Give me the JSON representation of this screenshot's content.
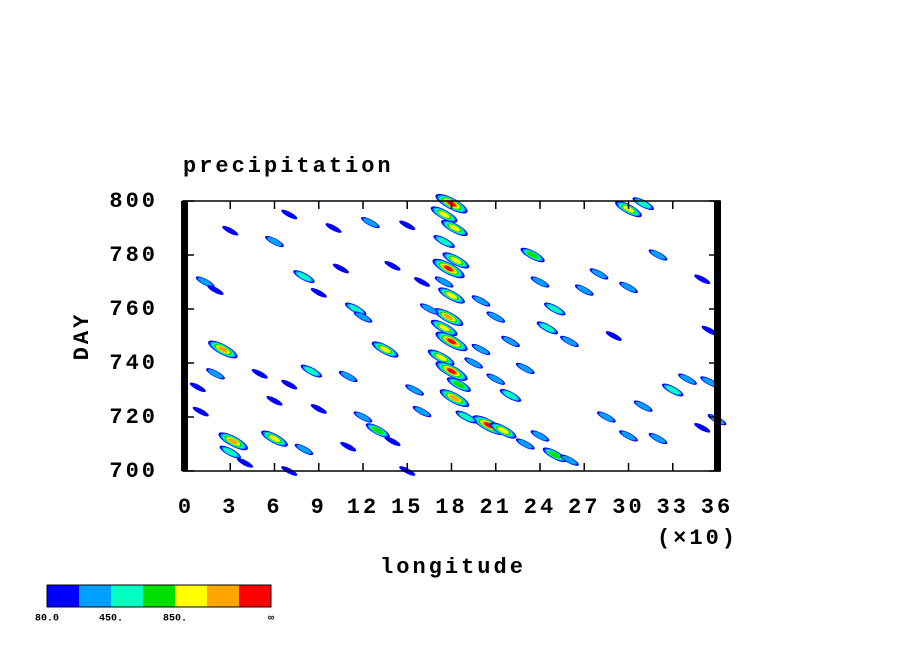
{
  "chart_data": {
    "type": "contour",
    "title": "precipitation",
    "x_label": "longitude",
    "x_multiplier": "(×10)",
    "y_label": "DAY",
    "xlim": [
      0,
      36
    ],
    "xticks": [
      0,
      3,
      6,
      9,
      12,
      15,
      18,
      21,
      24,
      27,
      30,
      33,
      36
    ],
    "ylim": [
      700,
      800
    ],
    "yticks": [
      700,
      720,
      740,
      760,
      780,
      800
    ],
    "colorbar": {
      "colors": [
        "#0000ff",
        "#00a0ff",
        "#00ffc0",
        "#00e000",
        "#ffff00",
        "#ffa500",
        "#ff0000"
      ],
      "ticks": [
        {
          "value": 80,
          "label": "80.0"
        },
        {
          "value": 450,
          "label": "450."
        },
        {
          "value": 850,
          "label": "850."
        }
      ],
      "end_label": "∞"
    },
    "x": [
      18,
      17.5,
      18.2,
      17.5,
      17.8,
      18.3,
      17.5,
      18,
      17.8,
      17.5,
      18,
      17.3,
      18,
      18.5,
      18.2,
      20.5,
      21.5,
      19,
      2.5,
      3.2,
      6,
      3,
      23.5,
      24,
      25,
      23,
      22,
      30,
      31,
      32,
      28,
      27,
      30,
      24.5,
      26,
      29,
      33,
      34,
      35.5,
      31,
      28.5,
      30,
      32,
      35,
      36,
      35,
      35.5,
      1,
      2,
      0.8,
      1.3,
      2,
      6,
      8,
      9,
      10.5,
      11.5,
      12,
      12.5,
      13.5,
      11,
      8.5,
      7,
      5,
      6,
      9,
      12,
      13,
      14,
      8,
      11,
      15,
      7,
      4,
      16.5,
      20,
      21,
      22,
      20,
      19.5,
      21,
      15.5,
      16,
      24,
      25,
      26,
      23,
      15,
      14,
      10,
      3,
      7,
      16
    ],
    "y": [
      799,
      795,
      790,
      785,
      775,
      778,
      770,
      765,
      757,
      753,
      748,
      742,
      737,
      732,
      727,
      717,
      715,
      720,
      745,
      711,
      712,
      707,
      780,
      770,
      760,
      738,
      728,
      797,
      799,
      780,
      773,
      767,
      768,
      753,
      748,
      750,
      730,
      734,
      733,
      724,
      720,
      713,
      712,
      716,
      719,
      771,
      752,
      722,
      736,
      731,
      770,
      767,
      785,
      772,
      766,
      775,
      760,
      757,
      792,
      745,
      735,
      737,
      732,
      736,
      726,
      723,
      720,
      715,
      711,
      708,
      709,
      700,
      700,
      703,
      760,
      763,
      757,
      748,
      745,
      740,
      734,
      730,
      722,
      713,
      706,
      704,
      710,
      791,
      776,
      790,
      789,
      795,
      770
    ],
    "values": [
      1300,
      900,
      1000,
      500,
      1300,
      1000,
      400,
      900,
      1200,
      1000,
      1300,
      900,
      1300,
      700,
      1100,
      1300,
      1000,
      600,
      1100,
      1200,
      900,
      500,
      700,
      400,
      500,
      400,
      600,
      900,
      500,
      300,
      300,
      400,
      300,
      600,
      300,
      200,
      500,
      300,
      300,
      300,
      300,
      300,
      300,
      200,
      300,
      200,
      200,
      200,
      300,
      200,
      300,
      200,
      300,
      500,
      200,
      200,
      600,
      300,
      400,
      900,
      300,
      500,
      200,
      200,
      200,
      200,
      300,
      800,
      200,
      300,
      200,
      200,
      200,
      200,
      300,
      400,
      300,
      400,
      300,
      300,
      300,
      300,
      300,
      400,
      700,
      300,
      300,
      200,
      200,
      200,
      200,
      200,
      200
    ]
  }
}
